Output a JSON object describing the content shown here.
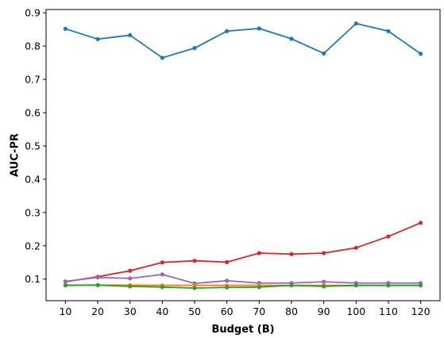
{
  "chart_data": {
    "type": "line",
    "title": "",
    "xlabel": "Budget (B)",
    "ylabel": "AUC-PR",
    "x": [
      10,
      20,
      30,
      40,
      50,
      60,
      70,
      80,
      90,
      100,
      110,
      120
    ],
    "xlim": [
      4,
      126
    ],
    "ylim": [
      0.035,
      0.91
    ],
    "yticks": [
      0.1,
      0.2,
      0.3,
      0.4,
      0.5,
      0.6,
      0.7,
      0.8,
      0.9
    ],
    "grid": false,
    "legend": "none",
    "series": [
      {
        "color": "#1f77b4",
        "values": [
          0.852,
          0.821,
          0.833,
          0.765,
          0.794,
          0.845,
          0.853,
          0.822,
          0.778,
          0.868,
          0.845,
          0.777
        ]
      },
      {
        "color": "#d62728",
        "values": [
          0.092,
          0.107,
          0.125,
          0.15,
          0.155,
          0.151,
          0.178,
          0.175,
          0.178,
          0.194,
          0.228,
          0.269
        ]
      },
      {
        "color": "#9467bd",
        "values": [
          0.093,
          0.105,
          0.102,
          0.114,
          0.087,
          0.095,
          0.088,
          0.088,
          0.092,
          0.088,
          0.088,
          0.088
        ]
      },
      {
        "color": "#ff7f0e",
        "values": [
          0.082,
          0.082,
          0.082,
          0.081,
          0.081,
          0.081,
          0.081,
          0.081,
          0.081,
          0.081,
          0.081,
          0.081
        ]
      },
      {
        "color": "#2ca02c",
        "values": [
          0.081,
          0.082,
          0.078,
          0.076,
          0.073,
          0.075,
          0.076,
          0.081,
          0.078,
          0.081,
          0.081,
          0.081
        ]
      }
    ]
  }
}
